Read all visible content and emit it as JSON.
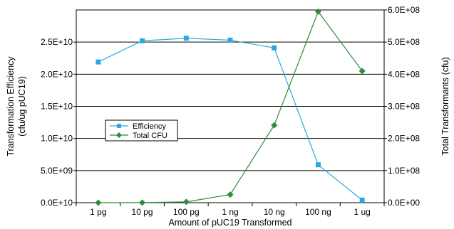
{
  "chart_data": {
    "type": "line",
    "title": "",
    "categories": [
      "1 pg",
      "10 pg",
      "100 pg",
      "1 ng",
      "10 ng",
      "100 ng",
      "1 ug"
    ],
    "xlabel": "Amount of pUC19 Transformed",
    "ylabel_lines": [
      "Transformation Efficiency",
      "(cfu/ug pUC19)"
    ],
    "y2label": "Total Transformants (cfu)",
    "ylim": [
      0,
      30000000000
    ],
    "y2lim": [
      0,
      600000000
    ],
    "yticks": [
      0,
      5000000000,
      10000000000,
      15000000000,
      20000000000,
      25000000000
    ],
    "ytick_labels": [
      "0.0E+10",
      "5.0E+09",
      "1.0E+10",
      "1.5E+10",
      "2.0E+10",
      "2.5E+10"
    ],
    "y2ticks": [
      0,
      100000000,
      200000000,
      300000000,
      400000000,
      500000000,
      600000000
    ],
    "y2tick_labels": [
      "0.0E+00",
      "1.0E+08",
      "2.0E+08",
      "3.0E+08",
      "4.0E+08",
      "5.0E+08",
      "6.0E+08"
    ],
    "grid": true,
    "legend_position": "center-left",
    "series": [
      {
        "name": "Efficiency",
        "axis": "left",
        "color": "#29a9e0",
        "marker": "square",
        "values": [
          21900000000,
          25200000000,
          25600000000,
          25300000000,
          24100000000,
          5900000000,
          400000000
        ]
      },
      {
        "name": "Total CFU",
        "axis": "right",
        "color": "#2e8b3a",
        "marker": "diamond",
        "values": [
          22000,
          250000,
          2560000,
          25300000,
          241000000,
          595000000,
          410000000
        ]
      }
    ]
  }
}
